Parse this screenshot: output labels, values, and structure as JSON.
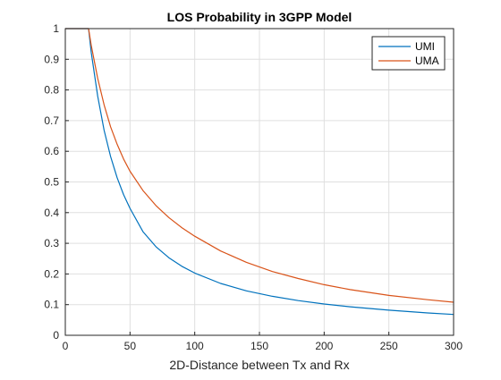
{
  "chart_data": {
    "type": "line",
    "title": "LOS Probability in 3GPP Model",
    "xlabel": "2D-Distance between Tx and Rx",
    "ylabel": "",
    "xlim": [
      0,
      300
    ],
    "ylim": [
      0,
      1
    ],
    "xticks": [
      0,
      50,
      100,
      150,
      200,
      250,
      300
    ],
    "yticks": [
      0,
      0.1,
      0.2,
      0.3,
      0.4,
      0.5,
      0.6,
      0.7,
      0.8,
      0.9,
      1
    ],
    "grid": true,
    "legend_position": "top-right",
    "series": [
      {
        "name": "UMI",
        "color": "#0072BD",
        "x": [
          0,
          18,
          20,
          25,
          30,
          35,
          40,
          45,
          50,
          60,
          70,
          80,
          90,
          100,
          120,
          140,
          160,
          180,
          200,
          220,
          250,
          280,
          300
        ],
        "y": [
          1,
          1,
          0.924,
          0.78,
          0.668,
          0.583,
          0.514,
          0.459,
          0.414,
          0.338,
          0.289,
          0.253,
          0.225,
          0.203,
          0.169,
          0.145,
          0.127,
          0.113,
          0.102,
          0.093,
          0.082,
          0.073,
          0.068
        ]
      },
      {
        "name": "UMA",
        "color": "#D95319",
        "x": [
          0,
          18,
          20,
          25,
          30,
          35,
          40,
          45,
          50,
          60,
          70,
          80,
          90,
          100,
          120,
          140,
          160,
          180,
          200,
          220,
          250,
          280,
          300
        ],
        "y": [
          1,
          1,
          0.947,
          0.838,
          0.751,
          0.68,
          0.623,
          0.575,
          0.535,
          0.472,
          0.423,
          0.384,
          0.351,
          0.323,
          0.275,
          0.238,
          0.208,
          0.185,
          0.165,
          0.149,
          0.13,
          0.116,
          0.108
        ]
      }
    ]
  }
}
